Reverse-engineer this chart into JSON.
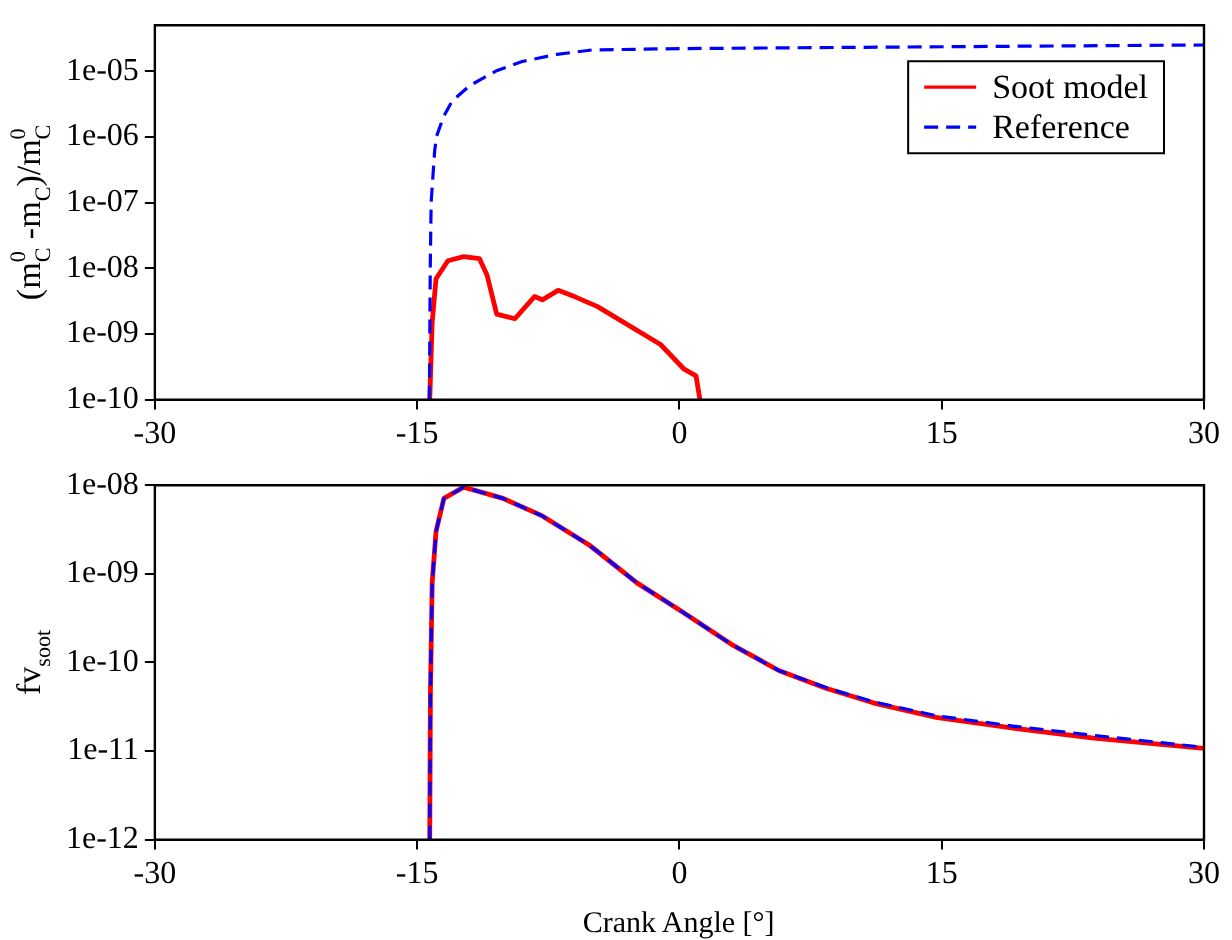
{
  "chart_data": [
    {
      "type": "line",
      "ylabel": "(m$_{C}$$^{0}$ -m$_{C}$)/m$_{C}$$^{0}$",
      "log": "y",
      "legend": "top right",
      "grid": false,
      "xlim": [
        -30,
        30
      ],
      "xticks": [
        -30,
        -15,
        0,
        15,
        30
      ],
      "ylim": [
        1e-10,
        5e-05
      ],
      "yticks": [
        {
          "value": 1e-10,
          "label": "1e-10"
        },
        {
          "value": 1e-09,
          "label": "1e-09"
        },
        {
          "value": 1e-08,
          "label": "1e-08"
        },
        {
          "value": 1e-07,
          "label": "1e-07"
        },
        {
          "value": 1e-06,
          "label": "1e-06"
        },
        {
          "value": 1e-05,
          "label": "1e-05"
        }
      ],
      "series": [
        {
          "name": "Soot model",
          "color": "#ff0000",
          "line_style": "solid",
          "x": [
            -14.28,
            -14.14,
            -13.92,
            -13.24,
            -12.34,
            -11.44,
            -11.0,
            -10.45,
            -9.41,
            -8.29,
            -7.84,
            -6.94,
            -6.0,
            -4.68,
            -1.08,
            0.27,
            0.95,
            1.17
          ],
          "values": [
            1e-10,
            1.5e-09,
            6.9e-09,
            1.3e-08,
            1.5e-08,
            1.4e-08,
            7.8e-09,
            2e-09,
            1.7e-09,
            3.7e-09,
            3.3e-09,
            4.6e-09,
            3.7e-09,
            2.6e-09,
            6.9e-10,
            2.9e-10,
            2.3e-10,
            1e-10
          ]
        },
        {
          "name": "Reference",
          "color": "#0000ff",
          "line_style": "dashed",
          "x": [
            -14.3,
            -14.25,
            -14.2,
            -14.0,
            -13.9,
            -13.5,
            -13.0,
            -12.0,
            -10.5,
            -9.0,
            -7.0,
            -5.0,
            0,
            10,
            20,
            30
          ],
          "values": [
            1e-10,
            1e-08,
            1e-07,
            6e-07,
            1e-06,
            2e-06,
            3.5e-06,
            6e-06,
            1e-05,
            1.4e-05,
            1.8e-05,
            2.1e-05,
            2.2e-05,
            2.3e-05,
            2.4e-05,
            2.5e-05
          ]
        }
      ]
    },
    {
      "type": "line",
      "xlabel": "Crank Angle [°]",
      "ylabel": "fv$_{soot}$",
      "log": "y",
      "legend": false,
      "grid": false,
      "xlim": [
        -30,
        30
      ],
      "xticks": [
        -30,
        -15,
        0,
        15,
        30
      ],
      "ylim": [
        1e-12,
        1e-08
      ],
      "yticks": [
        {
          "value": 1e-12,
          "label": "1e-12"
        },
        {
          "value": 1e-11,
          "label": "1e-11"
        },
        {
          "value": 1e-10,
          "label": "1e-10"
        },
        {
          "value": 1e-09,
          "label": "1e-09"
        },
        {
          "value": 1e-08,
          "label": "1e-08"
        }
      ],
      "series": [
        {
          "color": "#ff0000",
          "line_style": "solid",
          "x": [
            -14.28,
            -14.24,
            -14.14,
            -13.92,
            -13.47,
            -12.34,
            -10.09,
            -7.84,
            -5.14,
            -2.43,
            0.18,
            2.97,
            5.68,
            8.38,
            11.08,
            14.68,
            19.19,
            23.7,
            30
          ],
          "values": [
            1e-12,
            4.7e-11,
            7.9e-10,
            3e-09,
            7.1e-09,
            9.5e-09,
            7.1e-09,
            4.5e-09,
            2.1e-09,
            7.9e-10,
            3.7e-10,
            1.6e-10,
            8.1e-11,
            5.1e-11,
            3.5e-11,
            2.4e-11,
            1.8e-11,
            1.4e-11,
            1.07e-11
          ]
        },
        {
          "color": "#0000ff",
          "line_style": "dashed",
          "x": [
            -14.28,
            -14.24,
            -14.14,
            -13.92,
            -13.47,
            -12.34,
            -10.09,
            -7.84,
            -5.14,
            -2.43,
            0.18,
            2.97,
            5.68,
            8.38,
            11.08,
            14.68,
            19.19,
            23.7,
            30
          ],
          "values": [
            1e-12,
            4.7e-11,
            7.9e-10,
            3e-09,
            7.1e-09,
            9.5e-09,
            7.1e-09,
            4.5e-09,
            2.1e-09,
            7.9e-10,
            3.7e-10,
            1.6e-10,
            8.1e-11,
            5.2e-11,
            3.6e-11,
            2.5e-11,
            1.9e-11,
            1.5e-11,
            1.1e-11
          ]
        }
      ]
    }
  ]
}
